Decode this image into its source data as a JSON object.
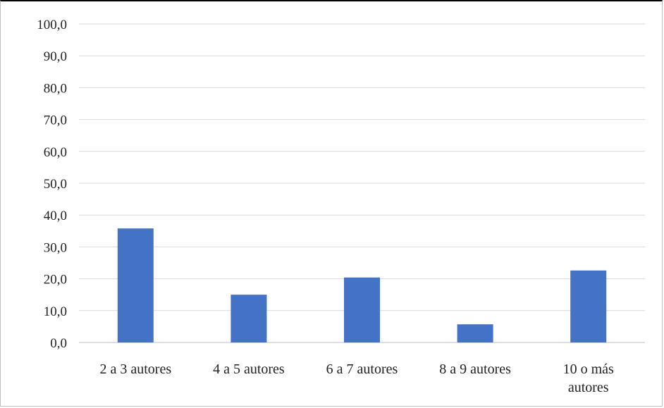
{
  "chart_data": {
    "type": "bar",
    "categories": [
      [
        "2 a 3 autores"
      ],
      [
        "4 a 5 autores"
      ],
      [
        "6 a 7 autores"
      ],
      [
        "8 a 9 autores"
      ],
      [
        "10 o más",
        "autores"
      ]
    ],
    "values": [
      35.8,
      15.0,
      20.4,
      5.7,
      22.6
    ],
    "y_ticks": [
      "0,0",
      "10,0",
      "20,0",
      "30,0",
      "40,0",
      "50,0",
      "60,0",
      "70,0",
      "80,0",
      "90,0",
      "100,0"
    ],
    "ylim": [
      0,
      100
    ],
    "grid": true,
    "legend": "none",
    "colors": {
      "bar": "#4472c4",
      "grid": "#d9d9d9",
      "axis": "#bfbfbf"
    }
  }
}
